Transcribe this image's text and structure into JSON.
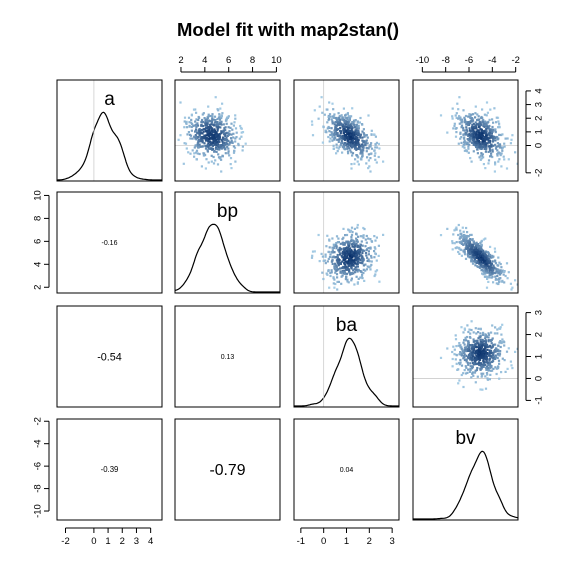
{
  "chart_data": {
    "type": "pairs",
    "title": "Model fit with map2stan()",
    "variables": [
      {
        "name": "a",
        "range": [
          -2.6,
          4.8
        ],
        "ticks": [
          -2,
          0,
          1,
          2,
          3,
          4
        ],
        "mean": 0.7,
        "sd": 0.9,
        "ref_line": 0
      },
      {
        "name": "bp",
        "range": [
          1.5,
          10.3
        ],
        "ticks": [
          2,
          4,
          6,
          8,
          10
        ],
        "mean": 4.6,
        "sd": 1.1,
        "ref_line": 0
      },
      {
        "name": "ba",
        "range": [
          -1.3,
          3.3
        ],
        "ticks": [
          -1,
          0,
          1,
          2,
          3
        ],
        "mean": 1.15,
        "sd": 0.55,
        "ref_line": 0
      },
      {
        "name": "bv",
        "range": [
          -10.8,
          -1.8
        ],
        "ticks": [
          -10,
          -8,
          -6,
          -4,
          -2
        ],
        "mean": -5.0,
        "sd": 1.05,
        "ref_line": 0
      }
    ],
    "correlations": [
      {
        "row": "bp",
        "col": "a",
        "value": -0.16,
        "label": "-0.16"
      },
      {
        "row": "ba",
        "col": "a",
        "value": -0.54,
        "label": "-0.54"
      },
      {
        "row": "ba",
        "col": "bp",
        "value": 0.13,
        "label": "0.13"
      },
      {
        "row": "bv",
        "col": "a",
        "value": -0.39,
        "label": "-0.39"
      },
      {
        "row": "bv",
        "col": "bp",
        "value": -0.79,
        "label": "-0.79"
      },
      {
        "row": "bv",
        "col": "ba",
        "value": 0.04,
        "label": "0.04"
      }
    ],
    "top_axis_columns": [
      "bp",
      "bv"
    ],
    "bottom_axis_columns": [
      "a",
      "ba"
    ],
    "left_axis_rows": [
      "bp",
      "bv"
    ],
    "right_axis_rows": [
      "a",
      "ba"
    ],
    "colors": {
      "points_light": "#a6cde6",
      "points_dark": "#08306b",
      "ref_line": "#cccccc",
      "frame": "#000000"
    },
    "grid": false
  }
}
